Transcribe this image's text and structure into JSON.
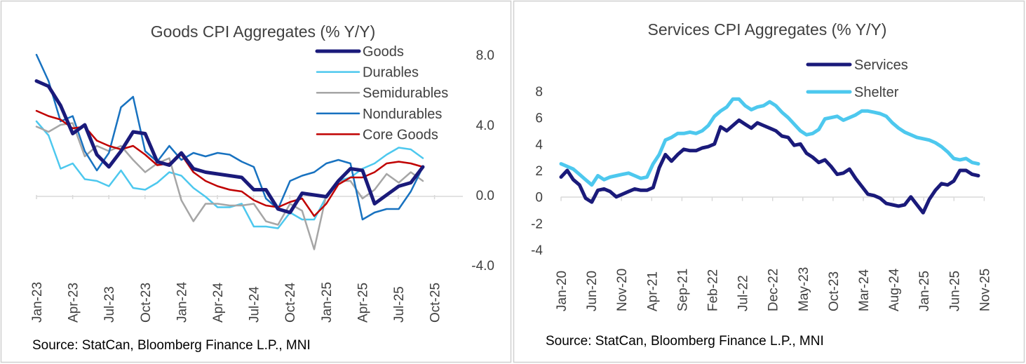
{
  "chart_data": [
    {
      "type": "line",
      "title": "Goods CPI Aggregates (% Y/Y)",
      "source": "Source: StatCan, Bloomberg Finance L.P., MNI",
      "x": [
        "Jan-23",
        "Feb-23",
        "Mar-23",
        "Apr-23",
        "May-23",
        "Jun-23",
        "Jul-23",
        "Aug-23",
        "Sep-23",
        "Oct-23",
        "Nov-23",
        "Dec-23",
        "Jan-24",
        "Feb-24",
        "Mar-24",
        "Apr-24",
        "May-24",
        "Jun-24",
        "Jul-24",
        "Aug-24",
        "Sep-24",
        "Oct-24",
        "Nov-24",
        "Dec-24",
        "Jan-25",
        "Feb-25",
        "Mar-25",
        "Apr-25",
        "May-25",
        "Jun-25",
        "Jul-25",
        "Aug-25",
        "Sep-25"
      ],
      "x_tick_labels": [
        "Jan-23",
        "Apr-23",
        "Jul-23",
        "Oct-23",
        "Jan-24",
        "Apr-24",
        "Jul-24",
        "Oct-24",
        "Jan-25",
        "Apr-25",
        "Jul-25",
        "Oct-25"
      ],
      "y_axis_side": "right",
      "ylim": [
        -4.0,
        8.0
      ],
      "y_ticks": [
        "8.0",
        "4.0",
        "0.0",
        "-4.0"
      ],
      "y_tick_values": [
        8,
        4,
        0,
        -4
      ],
      "legend_position": "top-right",
      "series": [
        {
          "name": "Goods",
          "color": "#1a1a7a",
          "width": 5,
          "values": [
            6.5,
            6.2,
            5.1,
            3.5,
            4.0,
            2.3,
            1.6,
            2.5,
            3.6,
            3.5,
            1.9,
            1.7,
            2.4,
            1.5,
            1.3,
            1.2,
            1.1,
            1.0,
            0.3,
            0.3,
            -0.8,
            -1.0,
            0.1,
            0.0,
            -0.1,
            0.8,
            1.5,
            1.4,
            -0.5,
            0.0,
            0.5,
            0.7,
            1.6
          ]
        },
        {
          "name": "Durables",
          "color": "#4dc8ee",
          "width": 2.5,
          "values": [
            4.2,
            3.4,
            1.5,
            1.8,
            0.9,
            0.8,
            0.5,
            1.4,
            0.4,
            0.3,
            0.7,
            1.3,
            1.1,
            0.4,
            -0.1,
            -0.7,
            -0.7,
            -0.5,
            -1.8,
            -1.8,
            -1.9,
            -1.0,
            -1.4,
            -1.4,
            -0.1,
            0.8,
            1.0,
            1.5,
            1.8,
            2.3,
            2.7,
            2.6,
            2.1
          ]
        },
        {
          "name": "Semidurables",
          "color": "#a6a6a6",
          "width": 2.5,
          "values": [
            3.9,
            3.6,
            4.0,
            4.1,
            2.2,
            2.8,
            2.5,
            2.8,
            2.0,
            1.3,
            1.8,
            2.1,
            -0.3,
            -1.5,
            -0.5,
            -0.5,
            -0.6,
            -0.6,
            -0.5,
            -1.5,
            -1.7,
            -0.5,
            -0.9,
            -3.1,
            0.0,
            0.8,
            0.8,
            -0.2,
            0.3,
            1.2,
            0.7,
            1.3,
            0.8
          ]
        },
        {
          "name": "Nondurables",
          "color": "#1872c0",
          "width": 2.5,
          "values": [
            8.0,
            6.5,
            4.2,
            4.5,
            2.5,
            1.4,
            2.4,
            5.0,
            5.6,
            2.5,
            1.9,
            2.8,
            2.0,
            2.4,
            2.2,
            2.4,
            2.3,
            1.9,
            1.6,
            -0.2,
            -0.8,
            0.8,
            1.1,
            1.3,
            1.8,
            2.0,
            1.8,
            -1.4,
            -1.0,
            -0.8,
            -0.8,
            0.2,
            1.6
          ]
        },
        {
          "name": "Core Goods",
          "color": "#c00000",
          "width": 2.5,
          "values": [
            4.8,
            4.5,
            4.3,
            3.8,
            3.9,
            3.1,
            2.8,
            2.6,
            2.8,
            2.3,
            1.7,
            1.8,
            2.3,
            1.3,
            0.8,
            0.5,
            0.3,
            0.2,
            -0.3,
            -0.6,
            -0.7,
            -0.4,
            -0.2,
            -1.2,
            -0.5,
            0.6,
            1.0,
            1.0,
            1.3,
            1.8,
            1.9,
            1.8,
            1.6
          ]
        }
      ]
    },
    {
      "type": "line",
      "title": "Services CPI Aggregates (% Y/Y)",
      "source": "Source: StatCan, Bloomberg Finance L.P., MNI",
      "x": [
        "Jan-20",
        "Feb-20",
        "Mar-20",
        "Apr-20",
        "May-20",
        "Jun-20",
        "Jul-20",
        "Aug-20",
        "Sep-20",
        "Oct-20",
        "Nov-20",
        "Dec-20",
        "Jan-21",
        "Feb-21",
        "Mar-21",
        "Apr-21",
        "May-21",
        "Jun-21",
        "Jul-21",
        "Aug-21",
        "Sep-21",
        "Oct-21",
        "Nov-21",
        "Dec-21",
        "Jan-22",
        "Feb-22",
        "Mar-22",
        "Apr-22",
        "May-22",
        "Jun-22",
        "Jul-22",
        "Aug-22",
        "Sep-22",
        "Oct-22",
        "Nov-22",
        "Dec-22",
        "Jan-23",
        "Feb-23",
        "Mar-23",
        "Apr-23",
        "May-23",
        "Jun-23",
        "Jul-23",
        "Aug-23",
        "Sep-23",
        "Oct-23",
        "Nov-23",
        "Dec-23",
        "Jan-24",
        "Feb-24",
        "Mar-24",
        "Apr-24",
        "May-24",
        "Jun-24",
        "Jul-24",
        "Aug-24",
        "Sep-24",
        "Oct-24",
        "Nov-24",
        "Dec-24",
        "Jan-25",
        "Feb-25",
        "Mar-25",
        "Apr-25",
        "May-25",
        "Jun-25",
        "Jul-25",
        "Aug-25",
        "Sep-25"
      ],
      "x_tick_labels": [
        "Jan-20",
        "Jun-20",
        "Nov-20",
        "Apr-21",
        "Sep-21",
        "Feb-22",
        "Jul-22",
        "Dec-22",
        "May-23",
        "Oct-23",
        "Mar-24",
        "Aug-24",
        "Jan-25",
        "Jun-25",
        "Nov-25"
      ],
      "y_axis_side": "left",
      "ylim": [
        -4,
        8
      ],
      "y_ticks": [
        "8",
        "6",
        "4",
        "2",
        "0",
        "-2",
        "-4"
      ],
      "y_tick_values": [
        8,
        6,
        4,
        2,
        0,
        -2,
        -4
      ],
      "legend_position": "top-right",
      "series": [
        {
          "name": "Services",
          "color": "#1a1a7a",
          "width": 5,
          "values": [
            1.5,
            2.0,
            1.3,
            0.9,
            -0.1,
            -0.4,
            0.5,
            0.6,
            0.4,
            0.0,
            0.2,
            0.4,
            0.6,
            0.5,
            0.5,
            0.7,
            2.2,
            3.2,
            2.7,
            3.2,
            3.6,
            3.5,
            3.5,
            3.7,
            3.8,
            4.0,
            5.3,
            5.0,
            5.4,
            5.8,
            5.5,
            5.2,
            5.6,
            5.4,
            5.2,
            5.0,
            4.6,
            4.5,
            3.9,
            4.0,
            3.3,
            3.0,
            2.6,
            2.8,
            2.3,
            1.7,
            1.8,
            2.1,
            1.4,
            0.8,
            0.2,
            0.1,
            -0.1,
            -0.5,
            -0.6,
            -0.7,
            -0.6,
            0.0,
            -0.6,
            -1.2,
            -0.2,
            0.5,
            1.0,
            0.9,
            1.2,
            2.0,
            2.0,
            1.7,
            1.6
          ]
        },
        {
          "name": "Shelter",
          "color": "#4dc8ee",
          "width": 5,
          "values": [
            2.5,
            2.3,
            2.1,
            1.7,
            1.3,
            0.9,
            1.6,
            1.3,
            1.5,
            1.6,
            1.7,
            1.8,
            1.6,
            1.4,
            1.5,
            2.5,
            3.2,
            4.3,
            4.5,
            4.8,
            4.8,
            4.9,
            4.8,
            5.0,
            5.4,
            6.1,
            6.5,
            6.8,
            7.4,
            7.4,
            6.9,
            6.6,
            6.8,
            6.9,
            7.2,
            6.9,
            6.4,
            6.0,
            5.5,
            5.0,
            4.7,
            4.8,
            5.1,
            5.9,
            6.0,
            6.1,
            5.8,
            6.0,
            6.2,
            6.5,
            6.5,
            6.4,
            6.3,
            6.1,
            5.6,
            5.2,
            4.9,
            4.7,
            4.5,
            4.4,
            4.3,
            4.1,
            3.8,
            3.4,
            2.9,
            2.8,
            2.9,
            2.6,
            2.5
          ]
        }
      ]
    }
  ]
}
